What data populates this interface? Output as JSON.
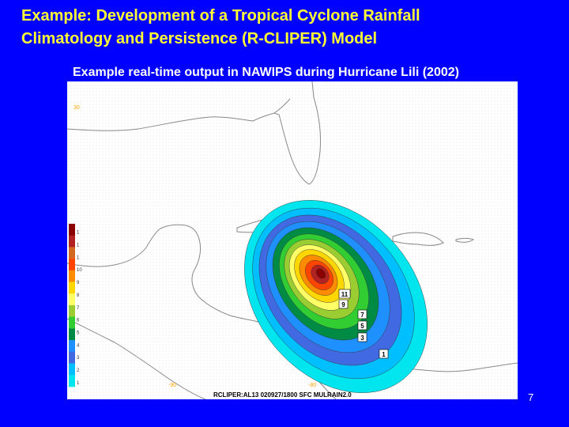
{
  "slide": {
    "title_lines": [
      "Example: Development of a Tropical Cyclone Rainfall",
      "Climatology and Persistence (R-CLIPER) Model"
    ],
    "subtitle": "Example real-time output in NAWIPS during Hurricane Lili (2002)",
    "page_number": "7"
  },
  "map": {
    "footer_label": "RCLIPER:AL13 020927/1800  SFC  MULRAIN2.0",
    "latitude_label": "30",
    "longitude_labels": [
      "-90",
      "-80"
    ],
    "colorbar_labels": [
      "1",
      "1",
      "1",
      "10",
      "9",
      "8",
      "7",
      "6",
      "5",
      "4",
      "3",
      "2",
      "1"
    ],
    "colorbar_colors": [
      "#8b0000",
      "#b22222",
      "#d2691e",
      "#ff4500",
      "#ff8c00",
      "#ffd700",
      "#ffff66",
      "#9acd32",
      "#32cd32",
      "#008b45",
      "#1e90ff",
      "#4169e1",
      "#00bfff",
      "#00e5ee"
    ],
    "contour_labels": [
      "11",
      "9",
      "7",
      "5",
      "3",
      "1"
    ],
    "rainfall_band_colors": [
      "#00e5ee",
      "#00bfff",
      "#4169e1",
      "#1e90ff",
      "#008b45",
      "#32cd32",
      "#9acd32",
      "#ffff66",
      "#ffd700",
      "#ff8c00",
      "#ff4500",
      "#b22222",
      "#8b0000"
    ],
    "land_color": "#ffffff",
    "coastline_color": "#888888"
  }
}
